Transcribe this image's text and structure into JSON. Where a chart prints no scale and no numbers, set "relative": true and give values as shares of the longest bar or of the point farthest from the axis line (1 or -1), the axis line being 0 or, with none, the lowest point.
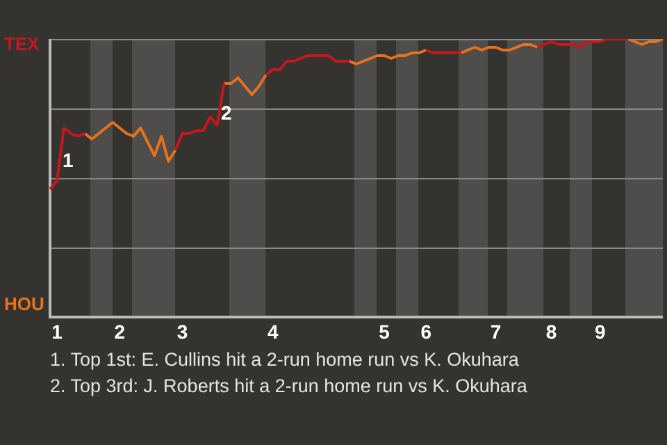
{
  "chart_data": {
    "type": "line",
    "relative": true,
    "categories": [
      null,
      "1",
      null,
      null,
      null,
      null,
      null,
      null,
      null,
      null,
      "2",
      null,
      null,
      null,
      null,
      null,
      null,
      null,
      null,
      "3",
      null,
      null,
      null,
      null,
      null,
      null,
      null,
      null,
      null,
      null,
      null,
      null,
      "4",
      null,
      null,
      null,
      null,
      null,
      null,
      null,
      null,
      null,
      null,
      null,
      null,
      null,
      null,
      null,
      "5",
      null,
      null,
      null,
      null,
      null,
      "6",
      null,
      null,
      null,
      null,
      null,
      null,
      null,
      null,
      null,
      "7",
      null,
      null,
      null,
      null,
      null,
      null,
      null,
      "8",
      null,
      null,
      null,
      null,
      null,
      null,
      "9",
      null,
      null,
      null,
      null,
      null,
      null,
      null,
      null,
      null
    ],
    "grid": "y",
    "legend": false,
    "marker": "none",
    "line_style": "solid",
    "series": [
      {
        "color": "#c8161e",
        "values": [
          0.46,
          0.49,
          0.68,
          0.66,
          0.65,
          0.66,
          null,
          null,
          null,
          null,
          null,
          null,
          null,
          null,
          null,
          null,
          null,
          null,
          0.6,
          0.66,
          0.66,
          0.67,
          0.67,
          0.72,
          0.69,
          0.84,
          null,
          null,
          null,
          null,
          null,
          0.87,
          0.89,
          0.89,
          0.92,
          0.92,
          0.93,
          0.94,
          0.94,
          0.94,
          0.94,
          0.92,
          0.92,
          0.92,
          null,
          null,
          null,
          null,
          null,
          null,
          null,
          null,
          null,
          null,
          0.96,
          0.95,
          0.95,
          0.95,
          0.95,
          0.95,
          null,
          null,
          null,
          null,
          null,
          null,
          null,
          null,
          null,
          null,
          0.97,
          0.98,
          0.99,
          0.98,
          0.98,
          0.98,
          0.97,
          0.99,
          0.99,
          0.99,
          1,
          1,
          1,
          1,
          null,
          null,
          null,
          null,
          null
        ]
      },
      {
        "color": "#e8711b",
        "values": [
          null,
          null,
          null,
          null,
          null,
          0.66,
          0.64,
          0.66,
          0.68,
          0.7,
          0.68,
          0.66,
          0.65,
          0.68,
          0.63,
          0.58,
          0.65,
          0.56,
          0.6,
          null,
          null,
          null,
          null,
          null,
          null,
          0.84,
          0.84,
          0.86,
          0.83,
          0.8,
          0.83,
          0.87,
          null,
          null,
          null,
          null,
          null,
          null,
          null,
          null,
          null,
          null,
          null,
          0.92,
          0.91,
          0.92,
          0.93,
          0.94,
          0.94,
          0.93,
          0.94,
          0.94,
          0.95,
          0.95,
          0.96,
          null,
          null,
          null,
          null,
          0.95,
          0.96,
          0.97,
          0.96,
          0.97,
          0.97,
          0.96,
          0.96,
          0.97,
          0.98,
          0.98,
          0.97,
          null,
          null,
          null,
          null,
          null,
          null,
          null,
          null,
          null,
          null,
          null,
          null,
          1,
          0.99,
          0.98,
          0.99,
          0.99,
          1
        ]
      }
    ],
    "annotations": [
      "TEX",
      "HOU",
      "1",
      "2",
      "1. Top 1st: E. Cullins hit a 2-run home run vs K. Okuhara",
      "2. Top 3rd: J. Roberts hit a 2-run home run vs K. Okuhara"
    ]
  }
}
